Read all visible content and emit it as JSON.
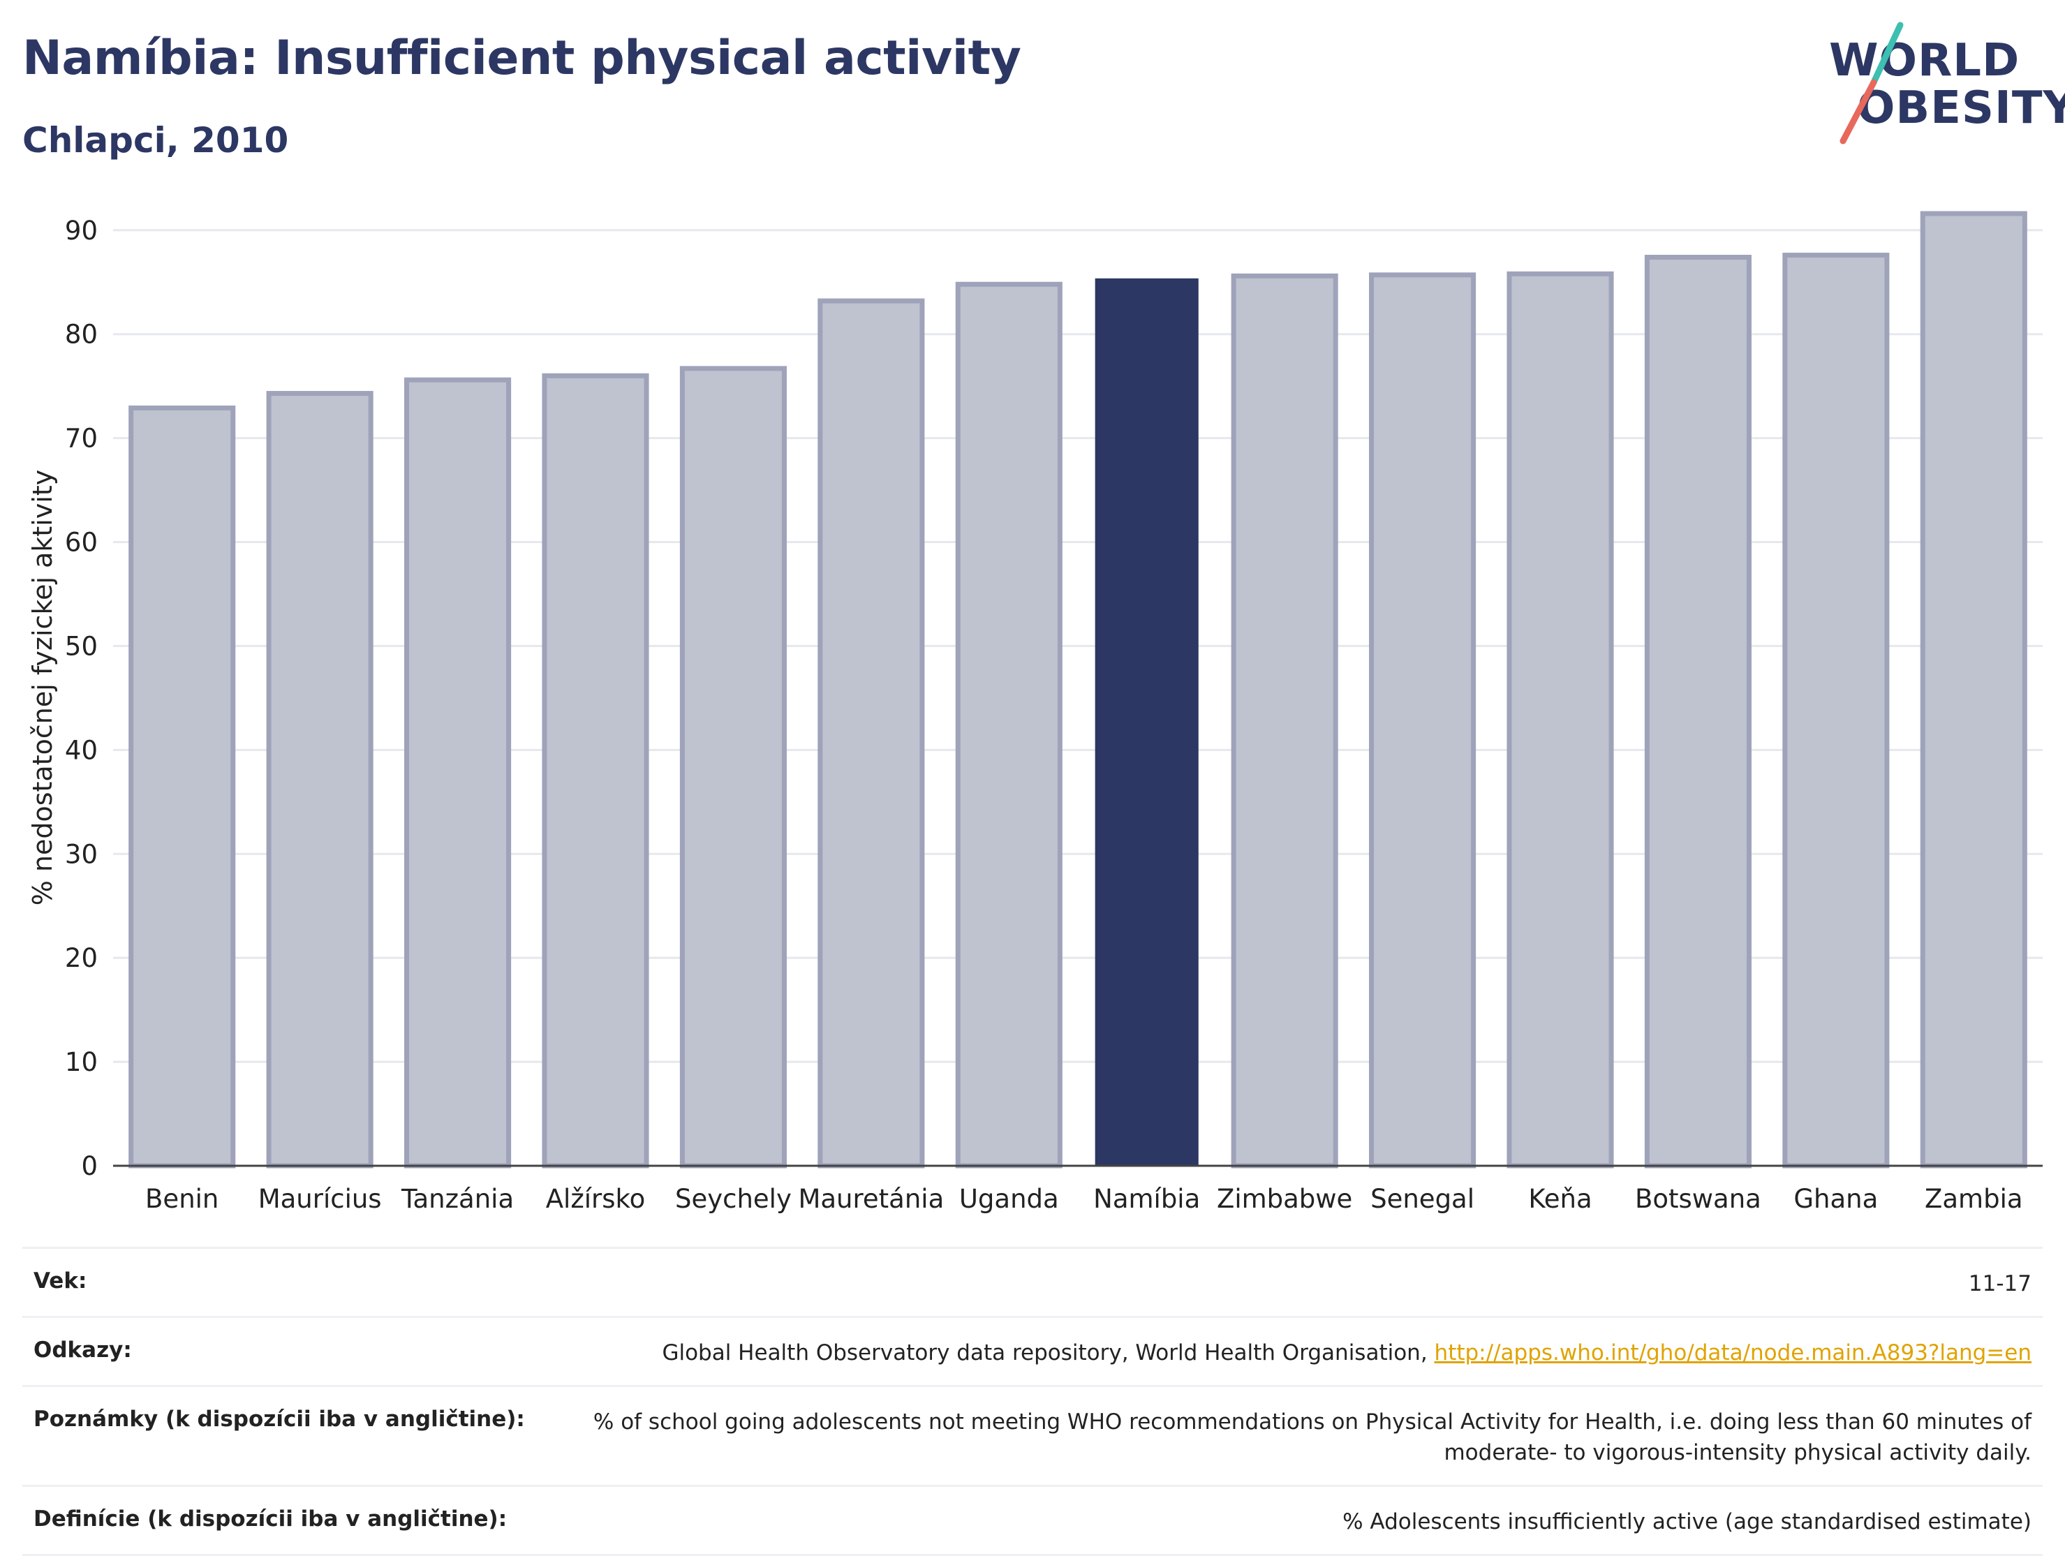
{
  "header": {
    "title": "Namíbia: Insufficient physical activity",
    "subtitle": "Chlapci, 2010"
  },
  "logo": {
    "line1": "WORLD",
    "line2": "OBESITY",
    "colors": {
      "text": "#2c3764",
      "slash_top": "#3dbfb1",
      "slash_bottom": "#e8685b"
    }
  },
  "chart_data": {
    "type": "bar",
    "title": "Namíbia: Insufficient physical activity",
    "subtitle": "Chlapci, 2010",
    "xlabel": "",
    "ylabel": "% nedostatočnej fyzickej aktivity",
    "ylim": [
      0,
      92
    ],
    "yticks": [
      0,
      10,
      20,
      30,
      40,
      50,
      60,
      70,
      80,
      90
    ],
    "grid": true,
    "categories": [
      "Benin",
      "Maurícius",
      "Tanzánia",
      "Alžírsko",
      "Seychely",
      "Mauretánia",
      "Uganda",
      "Namíbia",
      "Zimbabwe",
      "Senegal",
      "Keňa",
      "Botswana",
      "Ghana",
      "Zambia"
    ],
    "values": [
      72.9,
      74.3,
      75.6,
      76.0,
      76.7,
      83.2,
      84.8,
      85.3,
      85.6,
      85.7,
      85.8,
      87.4,
      87.6,
      91.6
    ],
    "highlight": "Namíbia",
    "colors": {
      "bar": "#bfc2cf",
      "bar_border": "#9ea3ba",
      "highlight": "#2c3764",
      "grid": "#e6e8ee",
      "axis": "#444444"
    }
  },
  "meta": {
    "age_label": "Vek:",
    "age_value": "11-17",
    "refs_label": "Odkazy:",
    "refs_text": "Global Health Observatory data repository, World Health Organisation, ",
    "refs_link": "http://apps.who.int/gho/data/node.main.A893?lang=en",
    "notes_label": "Poznámky (k dispozícii iba v angličtine):",
    "notes_value": "% of school going adolescents not meeting WHO recommendations on Physical Activity for Health, i.e. doing less than 60 minutes of moderate- to vigorous-intensity physical activity daily.",
    "defs_label": "Definície (k dispozícii iba v angličtine):",
    "defs_value": "% Adolescents insufficiently active (age standardised estimate)"
  }
}
